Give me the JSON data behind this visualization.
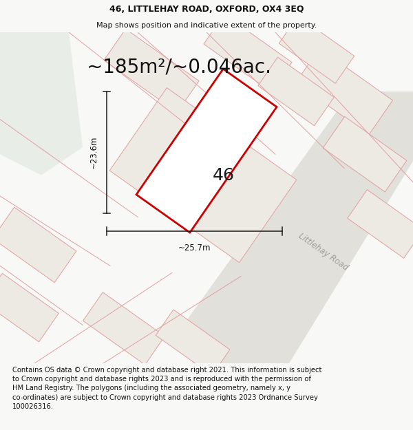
{
  "title_line1": "46, LITTLEHAY ROAD, OXFORD, OX4 3EQ",
  "title_line2": "Map shows position and indicative extent of the property.",
  "area_text": "~185m²/~0.046ac.",
  "dim_width": "~25.7m",
  "dim_height": "~23.6m",
  "label_number": "46",
  "road_label": "Littlehay Road",
  "footer_text": "Contains OS data © Crown copyright and database right 2021. This information is subject\nto Crown copyright and database rights 2023 and is reproduced with the permission of\nHM Land Registry. The polygons (including the associated geometry, namely x, y\nco-ordinates) are subject to Crown copyright and database rights 2023 Ordnance Survey\n100026316.",
  "bg_color": "#f8f8f6",
  "map_bg": "#f2f1ed",
  "highlight_color": "#cc0000",
  "highlight_fill": "#ffffff",
  "green_color": "#e8ede8",
  "road_fill": "#e2e0da",
  "neighbor_fill": "#e8e6e0",
  "neighbor_edge": "#e0a0a0",
  "plot_fill": "#edeae4",
  "plot_edge": "#e0a0a0",
  "dim_color": "#1a1a1a",
  "title_fontsize": 9,
  "subtitle_fontsize": 8,
  "area_fontsize": 20,
  "label_fontsize": 18,
  "road_fontsize": 8.5,
  "dim_fontsize": 8.5,
  "footer_fontsize": 7.2
}
